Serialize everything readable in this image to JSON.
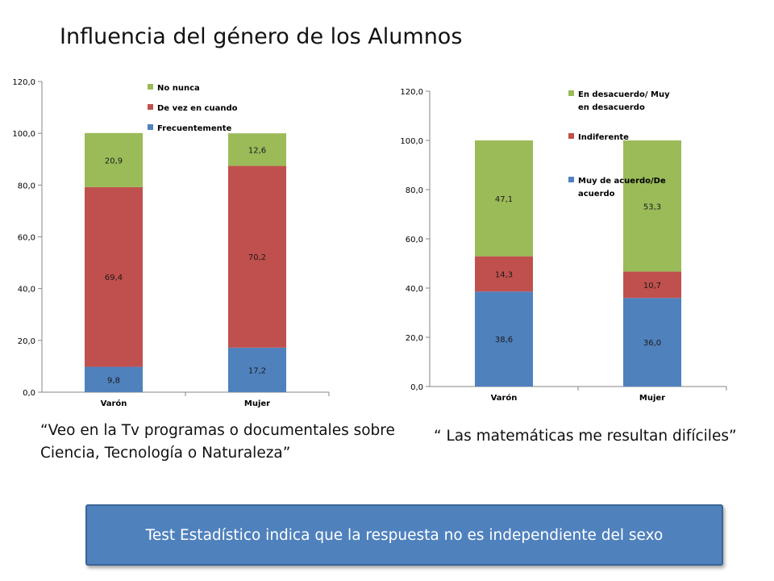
{
  "slide": {
    "title": "Influencia del género de los Alumnos",
    "caption_left": "“Veo en la Tv programas o documentales sobre Ciencia, Tecnología o Naturaleza”",
    "caption_left_line1": "“Veo en la Tv programas o documentales sobre",
    "caption_left_line2": "Ciencia, Tecnología o Naturaleza”",
    "caption_right": "“ Las matemáticas me resultan difíciles”",
    "banner": "Test Estadístico indica que la respuesta no es independiente del sexo"
  },
  "chart_data": [
    {
      "type": "bar",
      "stacked": true,
      "categories": [
        "Varón",
        "Mujer"
      ],
      "series": [
        {
          "name": "Frecuentemente",
          "values": [
            9.8,
            17.2
          ],
          "labels": [
            "9,8",
            "17,2"
          ],
          "color": "#4f81bd"
        },
        {
          "name": "De vez en cuando",
          "values": [
            69.4,
            70.2
          ],
          "labels": [
            "69,4",
            "70,2"
          ],
          "color": "#c0504d"
        },
        {
          "name": "No nunca",
          "values": [
            20.9,
            12.6
          ],
          "labels": [
            "20,9",
            "12,6"
          ],
          "color": "#9bbb59"
        }
      ],
      "ylim": [
        0,
        120
      ],
      "yticks": [
        "0,0",
        "20,0",
        "40,0",
        "60,0",
        "80,0",
        "100,0",
        "120,0"
      ],
      "grid": false,
      "legend_position": "top-right"
    },
    {
      "type": "bar",
      "stacked": true,
      "categories": [
        "Varón",
        "Mujer"
      ],
      "series": [
        {
          "name": "Muy de acuerdo/De acuerdo",
          "name_lines": [
            "Muy de acuerdo/De",
            "acuerdo"
          ],
          "values": [
            38.6,
            36.0
          ],
          "labels": [
            "38,6",
            "36,0"
          ],
          "color": "#4f81bd"
        },
        {
          "name": "Indiferente",
          "name_lines": [
            "Indiferente"
          ],
          "values": [
            14.3,
            10.7
          ],
          "labels": [
            "14,3",
            "10,7"
          ],
          "color": "#c0504d"
        },
        {
          "name": "En desacuerdo/ Muy en desacuerdo",
          "name_lines": [
            "En desacuerdo/ Muy",
            "en desacuerdo"
          ],
          "values": [
            47.1,
            53.3
          ],
          "labels": [
            "47,1",
            "53,3"
          ],
          "color": "#9bbb59"
        }
      ],
      "ylim": [
        0,
        120
      ],
      "yticks": [
        "0,0",
        "20,0",
        "40,0",
        "60,0",
        "80,0",
        "100,0",
        "120,0"
      ],
      "grid": false,
      "legend_position": "top-right"
    }
  ]
}
